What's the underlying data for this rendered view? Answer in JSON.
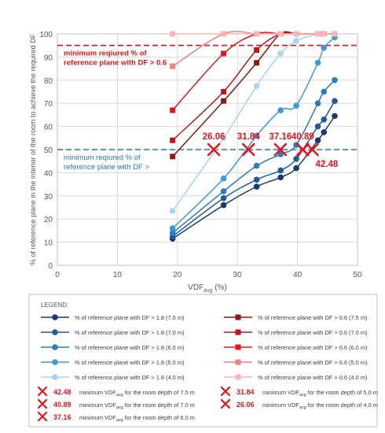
{
  "chart_data": {
    "type": "line",
    "xlabel": "VDF",
    "xlabel_sub": "avg",
    "xlabel_unit": "(%)",
    "ylabel": "% of reference plane in the interior of the room to achieve the required DF",
    "xlim": [
      0,
      50
    ],
    "ylim": [
      0,
      100
    ],
    "x_ticks": [
      0,
      10,
      20,
      30,
      40,
      50
    ],
    "y_ticks": [
      0,
      10,
      20,
      30,
      40,
      50,
      60,
      70,
      80,
      90,
      100
    ],
    "grid": true,
    "threshold_lines": [
      {
        "y": 95,
        "color": "#e8141b",
        "label": "minimum reqiured % of reference plane with DF > 0.6"
      },
      {
        "y": 50,
        "color": "#1f7ac9",
        "label": "minimum reqiured % of reference plane with DF >"
      }
    ],
    "legend_title": "LEGEND:",
    "series": [
      {
        "name": "% of  reference plane with DF > 1.8 (7.5 m)",
        "color": "#1a3a6b",
        "points": [
          [
            19.2,
            11.5
          ],
          [
            27.7,
            26
          ],
          [
            33.2,
            34
          ],
          [
            37.2,
            38
          ],
          [
            39.8,
            42
          ],
          [
            43.4,
            54
          ],
          [
            44.4,
            57.5
          ],
          [
            46.2,
            64.5
          ]
        ]
      },
      {
        "name": "% of  reference plane with DF > 1.8 (7.0 m)",
        "color": "#1f5a9e",
        "points": [
          [
            19.2,
            12.5
          ],
          [
            27.7,
            29
          ],
          [
            33.2,
            37
          ],
          [
            37.2,
            41
          ],
          [
            39.8,
            46
          ],
          [
            43.4,
            60
          ],
          [
            44.4,
            63
          ],
          [
            46.2,
            71
          ]
        ]
      },
      {
        "name": "% of  reference plane with DF > 1.8 (6.0 m)",
        "color": "#2c7bc0",
        "points": [
          [
            19.2,
            14
          ],
          [
            27.7,
            32
          ],
          [
            33.2,
            43
          ],
          [
            37.2,
            48
          ],
          [
            39.8,
            52
          ],
          [
            43.4,
            70
          ],
          [
            44.4,
            75
          ],
          [
            46.2,
            80
          ]
        ]
      },
      {
        "name": "% of  reference plane with DF > 1.8 (5.0 m)",
        "color": "#3e9ad6",
        "points": [
          [
            19.2,
            16
          ],
          [
            27.7,
            37.5
          ],
          [
            33.2,
            56
          ],
          [
            37.2,
            67
          ],
          [
            39.8,
            69
          ],
          [
            43.4,
            87.5
          ],
          [
            44.4,
            94
          ],
          [
            46.2,
            98.5
          ]
        ]
      },
      {
        "name": "% of  reference plane with DF > 1.8 (4.0 m)",
        "color": "#a9d3ef",
        "points": [
          [
            19.2,
            23.5
          ],
          [
            27.7,
            55
          ],
          [
            33.2,
            77.5
          ],
          [
            37.2,
            91.5
          ],
          [
            39.8,
            97
          ],
          [
            43.4,
            100
          ],
          [
            44.4,
            100
          ],
          [
            46.2,
            100
          ]
        ]
      },
      {
        "name": "% of  reference plane with DF > 0.6 (7.5 m)",
        "color": "#8b1a1a",
        "points": [
          [
            19.2,
            47
          ],
          [
            27.7,
            71
          ],
          [
            33.2,
            87.5
          ],
          [
            37.2,
            100
          ],
          [
            39.8,
            100
          ],
          [
            43.4,
            100
          ],
          [
            44.4,
            100
          ],
          [
            46.2,
            100
          ]
        ]
      },
      {
        "name": "% of  reference plane with DF > 0.6 (7.0 m)",
        "color": "#c0141b",
        "points": [
          [
            19.2,
            54
          ],
          [
            27.7,
            75
          ],
          [
            33.2,
            93
          ],
          [
            37.2,
            100
          ],
          [
            39.8,
            100
          ],
          [
            43.4,
            100
          ],
          [
            44.4,
            100
          ],
          [
            46.2,
            100
          ]
        ]
      },
      {
        "name": "% of  reference plane with DF > 0.6 (6.0 m)",
        "color": "#e8141b",
        "points": [
          [
            19.2,
            67
          ],
          [
            27.7,
            91.5
          ],
          [
            33.2,
            100
          ],
          [
            37.2,
            100
          ],
          [
            39.8,
            100
          ],
          [
            43.4,
            100
          ],
          [
            44.4,
            100
          ],
          [
            46.2,
            100
          ]
        ]
      },
      {
        "name": "% of  reference plane with DF > 0.6 (5.0 m)",
        "color": "#f08080",
        "points": [
          [
            19.2,
            86
          ],
          [
            27.7,
            100
          ],
          [
            33.2,
            100
          ],
          [
            37.2,
            100
          ],
          [
            39.8,
            100
          ],
          [
            43.4,
            100
          ],
          [
            44.4,
            100
          ],
          [
            46.2,
            100
          ]
        ]
      },
      {
        "name": "% of  reference plane with DF > 0.6 (4.0 m)",
        "color": "#f7b6b6",
        "points": [
          [
            19.2,
            100
          ],
          [
            27.7,
            100
          ],
          [
            33.2,
            100
          ],
          [
            37.2,
            100
          ],
          [
            39.8,
            100
          ],
          [
            43.4,
            100
          ],
          [
            44.4,
            100
          ],
          [
            46.2,
            100
          ]
        ]
      }
    ],
    "minimum_points": [
      {
        "x": 26.06,
        "y": 50,
        "label": "26.06",
        "desc_main": "minimum VDF",
        "desc_sub": "avg",
        "desc_rest": " for the room depth of 4.0 m"
      },
      {
        "x": 31.84,
        "y": 50,
        "label": "31.84",
        "desc_main": "minimum VDF",
        "desc_sub": "avg",
        "desc_rest": " for the room depth of 5.0 m"
      },
      {
        "x": 37.16,
        "y": 50,
        "label": "37.16",
        "desc_main": "minimum VDF",
        "desc_sub": "avg",
        "desc_rest": " for the room depth of 6.0 m"
      },
      {
        "x": 40.89,
        "y": 50,
        "label": "40.89",
        "desc_main": "minimum VDF",
        "desc_sub": "avg",
        "desc_rest": " for the room depth of 7.0 m"
      },
      {
        "x": 42.48,
        "y": 50,
        "label": "42.48",
        "desc_main": "minimum VDF",
        "desc_sub": "avg",
        "desc_rest": " for the room depth of 7.5 m"
      }
    ],
    "marker_color": "#e8141b"
  }
}
